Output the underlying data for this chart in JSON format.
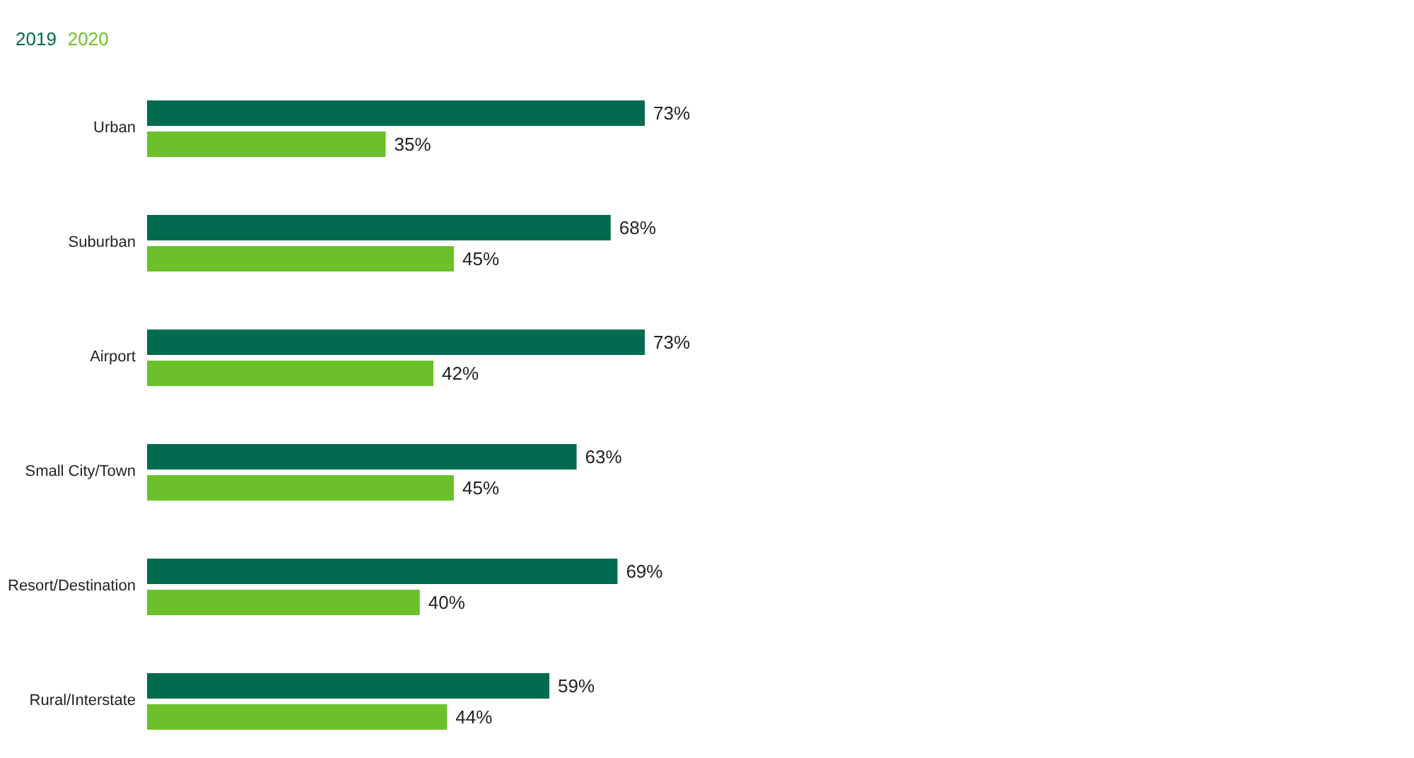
{
  "chart_data": {
    "type": "bar",
    "orientation": "horizontal",
    "legend": "top left",
    "categories": [
      "Urban",
      "Suburban",
      "Airport",
      "Small City/Town",
      "Resort/Destination",
      "Rural/Interstate"
    ],
    "series": [
      {
        "name": "2019",
        "color": "#006b4f",
        "values": [
          73,
          68,
          73,
          63,
          69,
          59
        ],
        "value_labels": [
          "73%",
          "68%",
          "73%",
          "63%",
          "69%",
          "59%"
        ]
      },
      {
        "name": "2020",
        "color": "#6cc12a",
        "values": [
          35,
          45,
          42,
          45,
          40,
          44
        ],
        "value_labels": [
          "35%",
          "45%",
          "42%",
          "45%",
          "40%",
          "44%"
        ]
      }
    ]
  }
}
